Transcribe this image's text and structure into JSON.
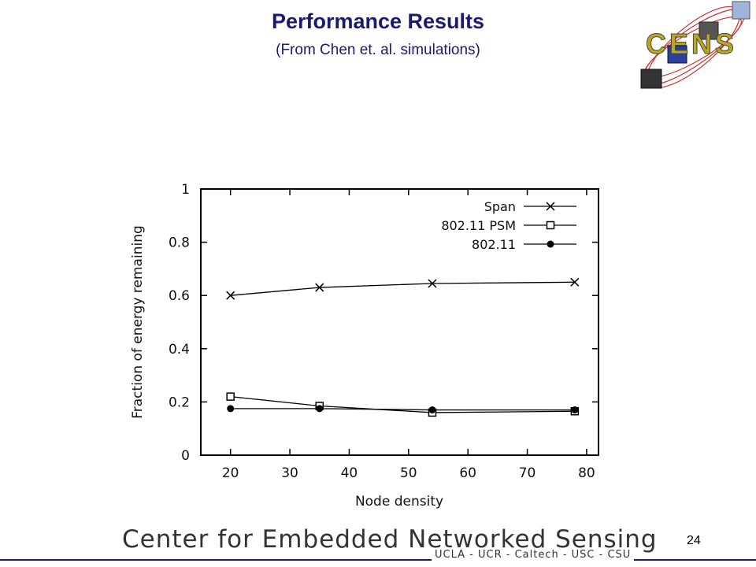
{
  "slide": {
    "title": "Performance Results",
    "subtitle": "(From Chen et. al. simulations)",
    "logo_text": "CENS",
    "footer_title": "Center for Embedded Networked Sensing",
    "footer_subtitle": "UCLA - UCR - Caltech - USC - CSU",
    "page_number": "24"
  },
  "colors": {
    "title": "#1a1a6e",
    "logo_gold": "#b8a52a",
    "logo_red": "#cc3333"
  },
  "chart_data": {
    "type": "line",
    "title": "",
    "xlabel": "Node density",
    "ylabel": "Fraction of energy remaining",
    "xlim": [
      15,
      82
    ],
    "ylim": [
      0,
      1
    ],
    "xticks": [
      20,
      30,
      40,
      50,
      60,
      70,
      80
    ],
    "yticks": [
      0,
      0.2,
      0.4,
      0.6,
      0.8,
      1
    ],
    "ytick_labels": [
      "0",
      "0.2",
      "0.4",
      "0.6",
      "0.8",
      "1"
    ],
    "grid": false,
    "legend_position": "top-right",
    "series": [
      {
        "name": "Span",
        "marker": "x",
        "x": [
          20,
          35,
          54,
          78
        ],
        "y": [
          0.6,
          0.63,
          0.645,
          0.65
        ]
      },
      {
        "name": "802.11 PSM",
        "marker": "open-square",
        "x": [
          20,
          35,
          54,
          78
        ],
        "y": [
          0.22,
          0.185,
          0.16,
          0.165
        ]
      },
      {
        "name": "802.11",
        "marker": "filled-circle",
        "x": [
          20,
          35,
          54,
          78
        ],
        "y": [
          0.175,
          0.175,
          0.17,
          0.17
        ]
      }
    ]
  }
}
